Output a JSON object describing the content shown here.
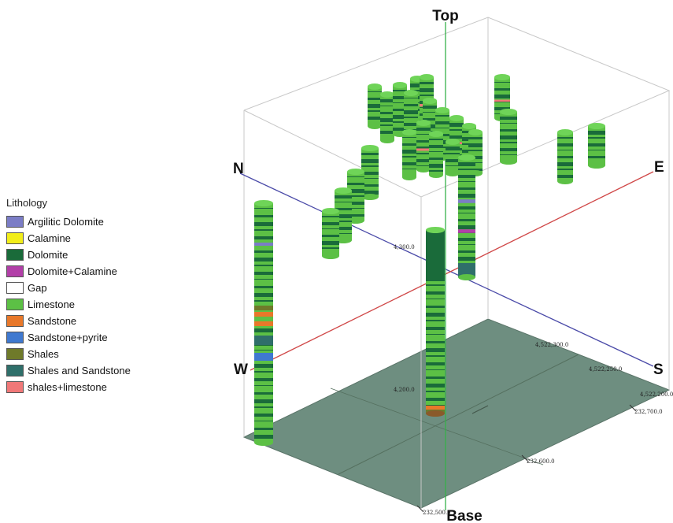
{
  "legend": {
    "title": "Lithology",
    "items": [
      {
        "label": "Argilitic Dolomite",
        "color": "#7b7dc6"
      },
      {
        "label": "Calamine",
        "color": "#f2ee1a"
      },
      {
        "label": "Dolomite",
        "color": "#1a6b3a"
      },
      {
        "label": "Dolomite+Calamine",
        "color": "#b23fa8"
      },
      {
        "label": "Gap",
        "color": "#ffffff"
      },
      {
        "label": "Limestone",
        "color": "#5cc045"
      },
      {
        "label": "Sandstone",
        "color": "#e8782a"
      },
      {
        "label": "Sandstone+pyrite",
        "color": "#3f79d0"
      },
      {
        "label": "Shales",
        "color": "#6f7a2a"
      },
      {
        "label": "Shales and Sandstone",
        "color": "#2f6f6a"
      },
      {
        "label": "shales+limestone",
        "color": "#f07878"
      }
    ]
  },
  "directions": {
    "top": "Top",
    "base": "Base",
    "north": "N",
    "south": "S",
    "east": "E",
    "west": "W"
  },
  "elevation_labels": {
    "upper": "4,300.0",
    "lower": "4,200.0"
  },
  "northing_labels": [
    "4,522,300.0",
    "4,522,250.0",
    "4,522,200.0"
  ],
  "easting_labels": [
    "232,700.0",
    "232,600.0",
    "232,500.0"
  ]
}
